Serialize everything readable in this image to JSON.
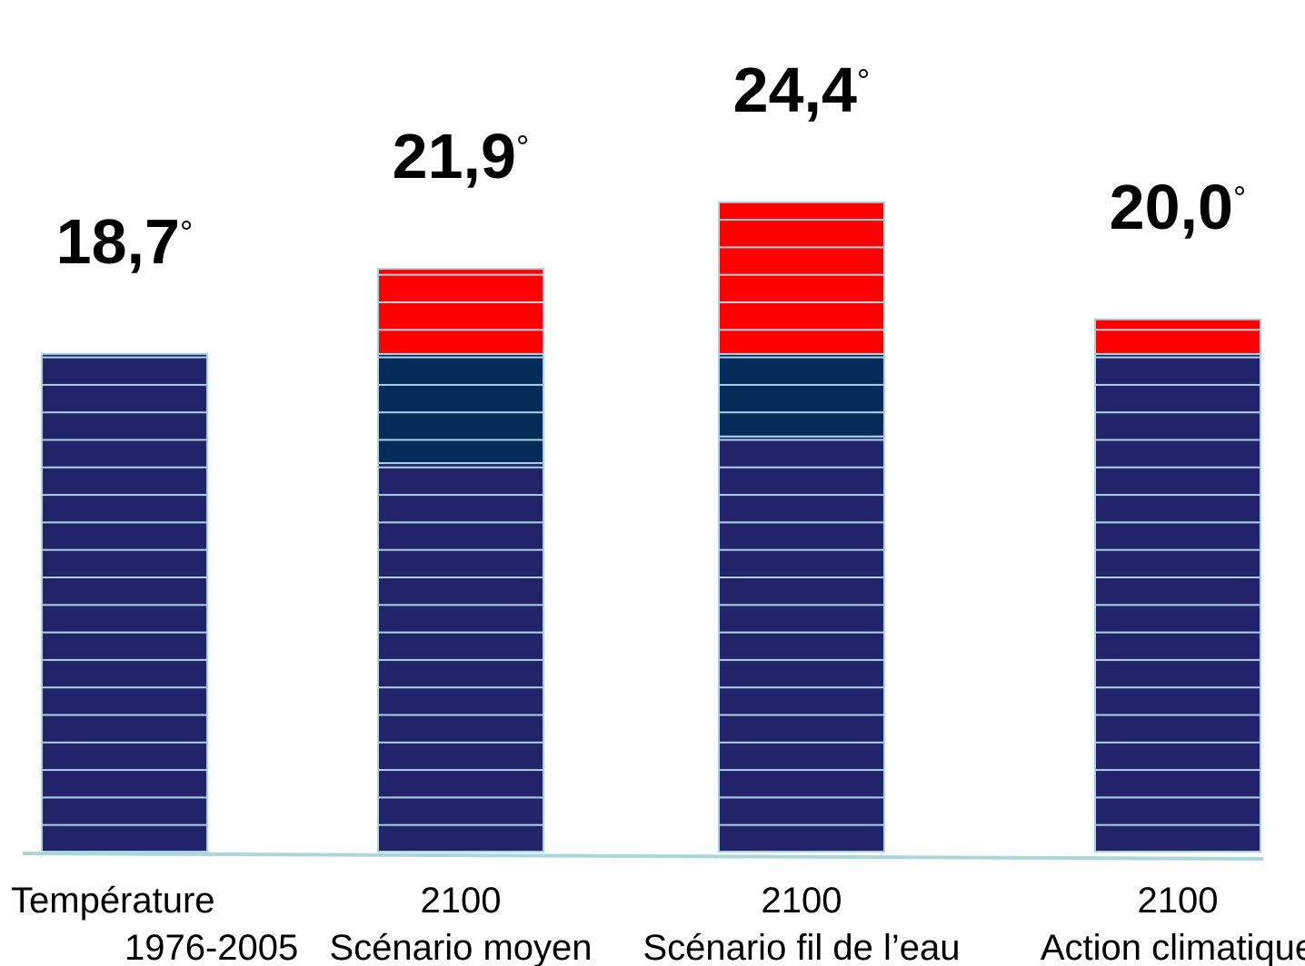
{
  "chart_data": {
    "type": "stacked_bar",
    "categories": [
      [
        "Température",
        "1976-2005"
      ],
      [
        "2100",
        "Scénario moyen"
      ],
      [
        "2100",
        "Scénario fil de l’eau"
      ],
      [
        "2100",
        "Action climatique"
      ]
    ],
    "values": [
      18.7,
      21.9,
      24.4,
      20.0
    ],
    "value_labels": [
      "18,7",
      "21,9",
      "24,4",
      "20,0"
    ],
    "degree_symbol": "°",
    "series": [
      {
        "color": "#22236a",
        "values": [
          18.7,
          14.6,
          15.6,
          18.7
        ]
      },
      {
        "color": "#062a5a",
        "values": [
          null,
          4.1,
          3.1,
          null
        ]
      },
      {
        "color": "#ff0000",
        "values": [
          null,
          3.2,
          5.7,
          1.3
        ]
      }
    ],
    "ylim": [
      0,
      32
    ],
    "stripe_color": "#a9d3e0"
  }
}
